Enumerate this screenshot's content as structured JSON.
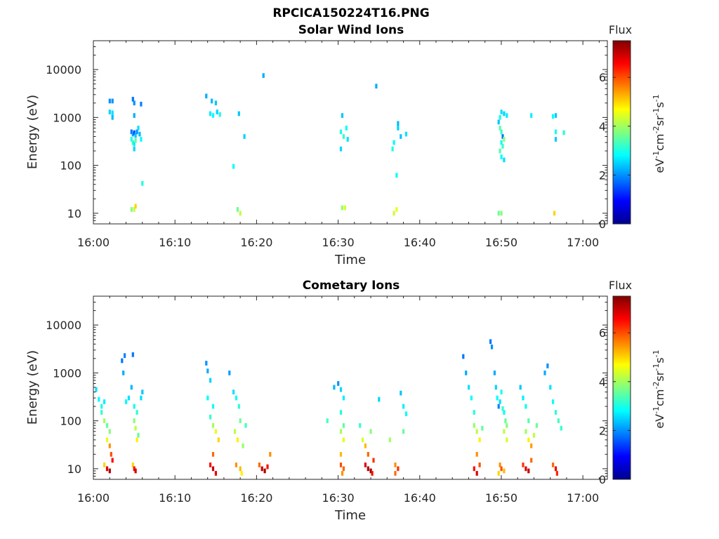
{
  "figure": {
    "title": "RPCICA150224T16.PNG"
  },
  "colorscale": [
    "#00008f",
    "#0000ff",
    "#0080ff",
    "#00ffff",
    "#80ff80",
    "#ffff00",
    "#ff8000",
    "#ff0000",
    "#800000"
  ],
  "chart_data": [
    {
      "type": "heatmap",
      "title": "Solar Wind Ions",
      "xlabel": "Time",
      "ylabel": "Energy (eV)",
      "yscale": "log",
      "ylim": [
        6,
        40000
      ],
      "xlim": [
        "16:00",
        "17:03"
      ],
      "x_ticks": [
        "16:00",
        "16:10",
        "16:20",
        "16:30",
        "16:40",
        "16:50",
        "17:00"
      ],
      "y_ticks": [
        "10",
        "100",
        "1000",
        "10000"
      ],
      "colorbar": {
        "title": "Flux",
        "unit": "eV-1cm-2sr-1s-1",
        "range": [
          0,
          7.5
        ],
        "ticks": [
          "0",
          "2",
          "4",
          "6"
        ]
      },
      "grid": false,
      "points": [
        [
          "16:02:00",
          2200,
          2.0
        ],
        [
          "16:02:20",
          2200,
          2.0
        ],
        [
          "16:02:00",
          1300,
          2.5
        ],
        [
          "16:02:20",
          1250,
          2.6
        ],
        [
          "16:02:20",
          1000,
          2.3
        ],
        [
          "16:04:50",
          2400,
          1.8
        ],
        [
          "16:05:00",
          2000,
          2.0
        ],
        [
          "16:05:50",
          1900,
          1.9
        ],
        [
          "16:05:00",
          1100,
          2.2
        ],
        [
          "16:04:40",
          500,
          1.8
        ],
        [
          "16:04:50",
          450,
          2.2
        ],
        [
          "16:05:00",
          480,
          1.5
        ],
        [
          "16:05:10",
          420,
          2.4
        ],
        [
          "16:05:20",
          500,
          2.0
        ],
        [
          "16:05:30",
          600,
          2.6
        ],
        [
          "16:05:40",
          450,
          2.3
        ],
        [
          "16:04:40",
          350,
          3.0
        ],
        [
          "16:04:50",
          300,
          3.2
        ],
        [
          "16:05:00",
          280,
          2.7
        ],
        [
          "16:05:10",
          330,
          3.5
        ],
        [
          "16:05:50",
          350,
          2.8
        ],
        [
          "16:05:00",
          220,
          2.5
        ],
        [
          "16:06:00",
          42,
          3.0
        ],
        [
          "16:13:50",
          2800,
          2.2
        ],
        [
          "16:14:30",
          2200,
          2.3
        ],
        [
          "16:15:00",
          2000,
          2.4
        ],
        [
          "16:14:20",
          1200,
          2.7
        ],
        [
          "16:14:40",
          1100,
          2.8
        ],
        [
          "16:15:10",
          1300,
          2.5
        ],
        [
          "16:15:30",
          1150,
          3.0
        ],
        [
          "16:17:50",
          1200,
          2.4
        ],
        [
          "16:18:30",
          400,
          2.5
        ],
        [
          "16:17:10",
          95,
          2.8
        ],
        [
          "16:20:50",
          7500,
          2.2
        ],
        [
          "16:34:40",
          4500,
          2.2
        ],
        [
          "16:30:30",
          1100,
          2.4
        ],
        [
          "16:30:20",
          500,
          3.0
        ],
        [
          "16:30:40",
          400,
          3.2
        ],
        [
          "16:31:00",
          600,
          2.8
        ],
        [
          "16:30:20",
          220,
          2.5
        ],
        [
          "16:31:10",
          350,
          2.6
        ],
        [
          "16:37:20",
          750,
          2.3
        ],
        [
          "16:37:20",
          600,
          2.5
        ],
        [
          "16:36:50",
          300,
          2.8
        ],
        [
          "16:37:40",
          400,
          2.4
        ],
        [
          "16:38:20",
          450,
          2.6
        ],
        [
          "16:36:40",
          220,
          3.0
        ],
        [
          "16:37:10",
          62,
          2.8
        ],
        [
          "16:49:40",
          800,
          2.4
        ],
        [
          "16:49:50",
          1000,
          3.0
        ],
        [
          "16:50:00",
          1300,
          2.6
        ],
        [
          "16:50:20",
          1200,
          2.5
        ],
        [
          "16:50:40",
          1100,
          2.7
        ],
        [
          "16:49:50",
          600,
          3.5
        ],
        [
          "16:50:00",
          500,
          3.2
        ],
        [
          "16:50:10",
          400,
          1.8
        ],
        [
          "16:50:20",
          350,
          3.8
        ],
        [
          "16:50:00",
          300,
          2.9
        ],
        [
          "16:50:10",
          250,
          3.2
        ],
        [
          "16:49:50",
          200,
          3.4
        ],
        [
          "16:50:00",
          150,
          2.8
        ],
        [
          "16:50:20",
          130,
          2.6
        ],
        [
          "16:53:40",
          1100,
          2.7
        ],
        [
          "16:56:40",
          1100,
          2.4
        ],
        [
          "16:56:20",
          1050,
          2.8
        ],
        [
          "16:56:40",
          500,
          3.0
        ],
        [
          "16:56:40",
          350,
          2.4
        ],
        [
          "16:57:40",
          480,
          3.1
        ],
        [
          "16:04:40",
          12,
          3.8
        ],
        [
          "16:05:00",
          12,
          4.2
        ],
        [
          "16:05:10",
          14,
          5.0
        ],
        [
          "16:17:40",
          12,
          3.6
        ],
        [
          "16:18:00",
          10,
          4.2
        ],
        [
          "16:30:30",
          13,
          3.9
        ],
        [
          "16:30:50",
          13,
          4.4
        ],
        [
          "16:36:50",
          10,
          4.3
        ],
        [
          "16:37:10",
          12,
          4.5
        ],
        [
          "16:49:40",
          10,
          3.6
        ],
        [
          "16:50:00",
          10,
          3.8
        ],
        [
          "16:56:30",
          10,
          5.0
        ]
      ]
    },
    {
      "type": "heatmap",
      "title": "Cometary Ions",
      "xlabel": "Time",
      "ylabel": "Energy (eV)",
      "yscale": "log",
      "ylim": [
        6,
        40000
      ],
      "xlim": [
        "16:00",
        "17:03"
      ],
      "x_ticks": [
        "16:00",
        "16:10",
        "16:20",
        "16:30",
        "16:40",
        "16:50",
        "17:00"
      ],
      "y_ticks": [
        "10",
        "100",
        "1000",
        "10000"
      ],
      "colorbar": {
        "title": "Flux",
        "unit": "eV-1cm-2sr-1s-1",
        "range": [
          0,
          7.5
        ],
        "ticks": [
          "0",
          "2",
          "4",
          "6"
        ]
      },
      "grid": false,
      "points": [
        [
          "16:00:20",
          450,
          2.6
        ],
        [
          "16:00:40",
          280,
          2.8
        ],
        [
          "16:01:00",
          200,
          3.0
        ],
        [
          "16:01:20",
          250,
          2.7
        ],
        [
          "16:01:00",
          150,
          3.2
        ],
        [
          "16:01:20",
          100,
          4.0
        ],
        [
          "16:01:40",
          80,
          3.5
        ],
        [
          "16:02:00",
          60,
          3.8
        ],
        [
          "16:01:40",
          40,
          4.5
        ],
        [
          "16:02:00",
          30,
          5.5
        ],
        [
          "16:01:20",
          12,
          5.0
        ],
        [
          "16:01:40",
          10,
          6.8
        ],
        [
          "16:02:00",
          9,
          7.2
        ],
        [
          "16:02:20",
          15,
          6.5
        ],
        [
          "16:02:10",
          20,
          6.0
        ],
        [
          "16:03:30",
          1800,
          1.8
        ],
        [
          "16:03:50",
          2300,
          1.9
        ],
        [
          "16:03:40",
          1000,
          2.2
        ],
        [
          "16:04:00",
          250,
          2.8
        ],
        [
          "16:04:20",
          300,
          2.6
        ],
        [
          "16:04:50",
          2400,
          1.8
        ],
        [
          "16:04:40",
          500,
          2.3
        ],
        [
          "16:05:00",
          200,
          2.9
        ],
        [
          "16:05:20",
          150,
          3.1
        ],
        [
          "16:05:00",
          100,
          3.8
        ],
        [
          "16:05:10",
          70,
          4.2
        ],
        [
          "16:05:30",
          50,
          3.5
        ],
        [
          "16:05:20",
          40,
          4.8
        ],
        [
          "16:05:50",
          300,
          2.6
        ],
        [
          "16:06:00",
          400,
          2.4
        ],
        [
          "16:04:50",
          12,
          5.0
        ],
        [
          "16:05:00",
          10,
          6.5
        ],
        [
          "16:05:10",
          9,
          6.9
        ],
        [
          "16:13:50",
          1600,
          2.0
        ],
        [
          "16:14:00",
          1100,
          2.2
        ],
        [
          "16:14:20",
          700,
          2.5
        ],
        [
          "16:14:00",
          300,
          2.8
        ],
        [
          "16:14:40",
          200,
          2.9
        ],
        [
          "16:14:20",
          120,
          3.2
        ],
        [
          "16:14:40",
          80,
          4.0
        ],
        [
          "16:15:00",
          60,
          4.5
        ],
        [
          "16:15:20",
          40,
          5.0
        ],
        [
          "16:14:40",
          20,
          5.8
        ],
        [
          "16:14:20",
          12,
          6.5
        ],
        [
          "16:14:40",
          10,
          7.0
        ],
        [
          "16:15:00",
          8,
          6.7
        ],
        [
          "16:16:40",
          1000,
          2.1
        ],
        [
          "16:17:10",
          400,
          2.6
        ],
        [
          "16:17:30",
          300,
          2.9
        ],
        [
          "16:17:50",
          200,
          3.1
        ],
        [
          "16:18:00",
          100,
          3.6
        ],
        [
          "16:17:20",
          60,
          4.2
        ],
        [
          "16:17:40",
          40,
          4.8
        ],
        [
          "16:18:20",
          30,
          3.9
        ],
        [
          "16:18:40",
          80,
          3.3
        ],
        [
          "16:17:30",
          12,
          5.5
        ],
        [
          "16:18:00",
          10,
          5.2
        ],
        [
          "16:18:10",
          8,
          4.8
        ],
        [
          "16:20:20",
          12,
          5.8
        ],
        [
          "16:20:40",
          10,
          7.0
        ],
        [
          "16:21:00",
          9,
          7.2
        ],
        [
          "16:21:20",
          11,
          6.5
        ],
        [
          "16:21:40",
          20,
          5.5
        ],
        [
          "16:28:40",
          100,
          3.3
        ],
        [
          "16:29:30",
          500,
          2.3
        ],
        [
          "16:30:00",
          600,
          2.0
        ],
        [
          "16:30:20",
          450,
          2.5
        ],
        [
          "16:30:40",
          300,
          2.7
        ],
        [
          "16:30:20",
          150,
          3.0
        ],
        [
          "16:30:40",
          80,
          3.5
        ],
        [
          "16:30:20",
          60,
          4.0
        ],
        [
          "16:30:40",
          40,
          4.5
        ],
        [
          "16:30:20",
          20,
          5.2
        ],
        [
          "16:30:20",
          12,
          6.0
        ],
        [
          "16:30:40",
          10,
          5.8
        ],
        [
          "16:30:30",
          8,
          5.5
        ],
        [
          "16:32:40",
          80,
          3.2
        ],
        [
          "16:33:00",
          40,
          4.4
        ],
        [
          "16:33:20",
          30,
          5.2
        ],
        [
          "16:33:40",
          20,
          5.8
        ],
        [
          "16:34:00",
          60,
          3.8
        ],
        [
          "16:33:20",
          12,
          6.8
        ],
        [
          "16:33:40",
          10,
          7.1
        ],
        [
          "16:34:00",
          9,
          7.3
        ],
        [
          "16:34:20",
          15,
          6.2
        ],
        [
          "16:34:10",
          8,
          6.5
        ],
        [
          "16:35:00",
          280,
          2.5
        ],
        [
          "16:36:20",
          40,
          4.0
        ],
        [
          "16:37:00",
          12,
          5.5
        ],
        [
          "16:37:20",
          10,
          6.2
        ],
        [
          "16:37:00",
          8,
          5.8
        ],
        [
          "16:37:40",
          380,
          2.4
        ],
        [
          "16:38:00",
          200,
          2.7
        ],
        [
          "16:38:20",
          140,
          2.9
        ],
        [
          "16:38:00",
          60,
          3.6
        ],
        [
          "16:45:20",
          2200,
          1.8
        ],
        [
          "16:45:40",
          1000,
          2.2
        ],
        [
          "16:46:00",
          500,
          2.6
        ],
        [
          "16:46:20",
          300,
          2.8
        ],
        [
          "16:46:40",
          150,
          3.1
        ],
        [
          "16:46:40",
          80,
          3.9
        ],
        [
          "16:47:00",
          60,
          4.2
        ],
        [
          "16:47:20",
          40,
          4.8
        ],
        [
          "16:47:00",
          20,
          5.5
        ],
        [
          "16:47:20",
          12,
          6.0
        ],
        [
          "16:46:40",
          10,
          6.5
        ],
        [
          "16:47:00",
          8,
          6.8
        ],
        [
          "16:47:40",
          70,
          3.5
        ],
        [
          "16:48:40",
          4500,
          1.8
        ],
        [
          "16:48:50",
          3500,
          2.0
        ],
        [
          "16:49:10",
          1000,
          2.2
        ],
        [
          "16:49:20",
          500,
          2.5
        ],
        [
          "16:49:30",
          300,
          2.8
        ],
        [
          "16:49:40",
          200,
          1.9
        ],
        [
          "16:49:50",
          250,
          2.6
        ],
        [
          "16:50:00",
          400,
          3.0
        ],
        [
          "16:50:10",
          180,
          3.2
        ],
        [
          "16:50:20",
          150,
          2.9
        ],
        [
          "16:50:30",
          100,
          3.5
        ],
        [
          "16:50:40",
          80,
          3.8
        ],
        [
          "16:50:20",
          60,
          4.2
        ],
        [
          "16:50:40",
          40,
          4.4
        ],
        [
          "16:49:50",
          12,
          5.5
        ],
        [
          "16:50:00",
          10,
          6.0
        ],
        [
          "16:50:20",
          9,
          5.2
        ],
        [
          "16:49:40",
          8,
          5.0
        ],
        [
          "16:52:20",
          500,
          2.4
        ],
        [
          "16:52:40",
          300,
          2.7
        ],
        [
          "16:53:00",
          200,
          2.9
        ],
        [
          "16:53:20",
          100,
          3.4
        ],
        [
          "16:53:00",
          60,
          4.0
        ],
        [
          "16:53:20",
          40,
          4.8
        ],
        [
          "16:53:40",
          30,
          5.4
        ],
        [
          "16:54:00",
          50,
          4.2
        ],
        [
          "16:54:20",
          80,
          3.6
        ],
        [
          "16:52:40",
          12,
          6.2
        ],
        [
          "16:53:00",
          10,
          6.8
        ],
        [
          "16:53:20",
          9,
          7.0
        ],
        [
          "16:53:40",
          15,
          5.8
        ],
        [
          "16:55:40",
          1400,
          2.0
        ],
        [
          "16:55:20",
          1000,
          2.2
        ],
        [
          "16:56:00",
          500,
          2.6
        ],
        [
          "16:56:20",
          250,
          2.9
        ],
        [
          "16:56:40",
          150,
          3.1
        ],
        [
          "16:57:00",
          100,
          3.3
        ],
        [
          "16:57:20",
          70,
          3.2
        ],
        [
          "16:56:20",
          12,
          5.8
        ],
        [
          "16:56:40",
          10,
          6.7
        ],
        [
          "16:56:50",
          8,
          6.3
        ]
      ]
    }
  ]
}
